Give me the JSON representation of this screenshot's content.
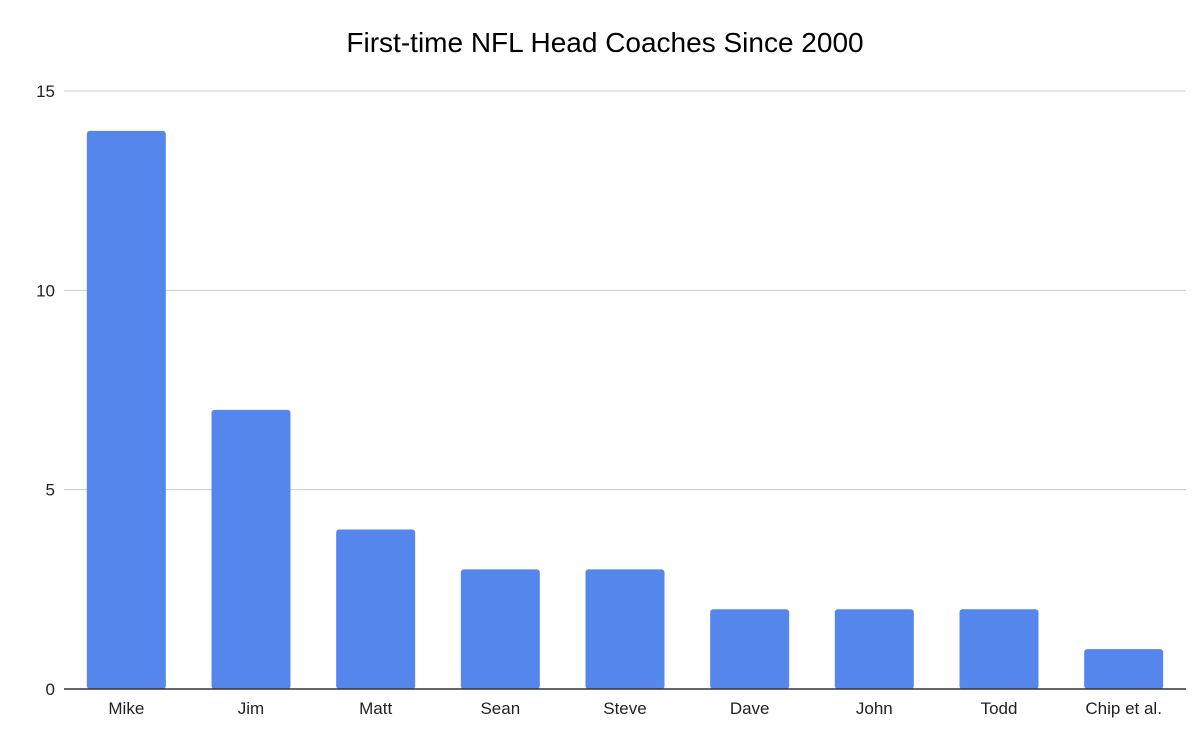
{
  "chart_data": {
    "type": "bar",
    "title": "First-time NFL Head Coaches Since 2000",
    "xlabel": "",
    "ylabel": "",
    "categories": [
      "Mike",
      "Jim",
      "Matt",
      "Sean",
      "Steve",
      "Dave",
      "John",
      "Todd",
      "Chip et al."
    ],
    "values": [
      14,
      7,
      4,
      3,
      3,
      2,
      2,
      2,
      1
    ],
    "ylim": [
      0,
      15
    ],
    "yticks": [
      0,
      5,
      10,
      15
    ],
    "grid": true,
    "legend": "none",
    "bar_color": "#5586ec",
    "grid_color": "#cccccc",
    "axis_color": "#333333"
  }
}
